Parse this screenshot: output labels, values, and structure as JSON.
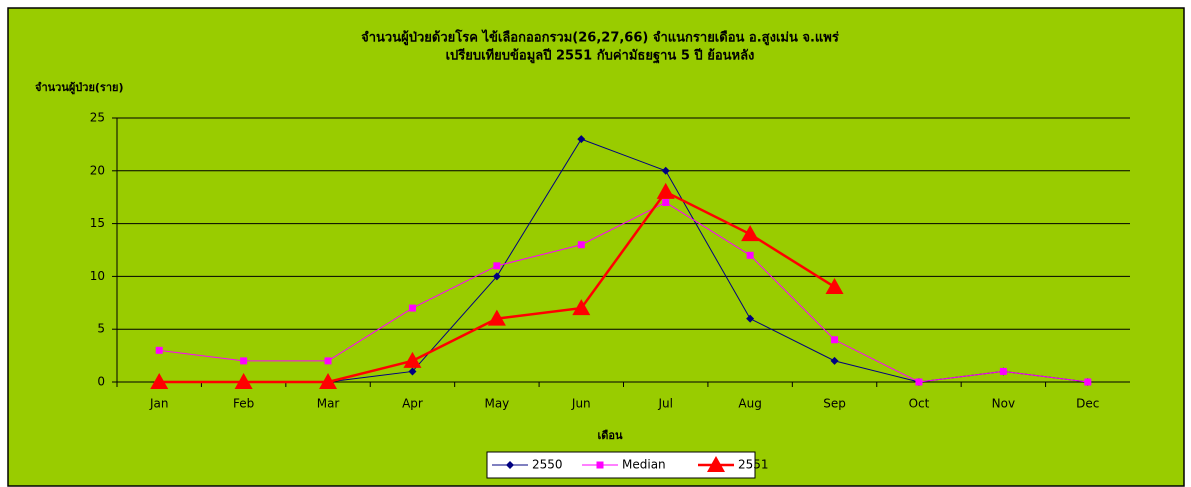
{
  "chart_data": {
    "type": "line",
    "title": "จำนวนผู้ป่วยด้วยโรค  ไข้เลือกออกรวม(26,27,66)  จำแนกรายเดือน    อ.สูงเม่น จ.แพร่",
    "subtitle": "เปรียบเทียบข้อมูลปี  2551  กับค่ามัธยฐาน 5 ปี ย้อนหลัง",
    "y_label": "จำนวนผู้ป่วย(ราย)",
    "x_label": "เดือน",
    "categories": [
      "Jan",
      "Feb",
      "Mar",
      "Apr",
      "May",
      "Jun",
      "Jul",
      "Aug",
      "Sep",
      "Oct",
      "Nov",
      "Dec"
    ],
    "series": [
      {
        "name": "2550",
        "color": "#000080",
        "marker": "diamond",
        "values": [
          0,
          0,
          0,
          1,
          10,
          23,
          20,
          6,
          2,
          0,
          1,
          0
        ]
      },
      {
        "name": "Median",
        "color": "#ff00ff",
        "marker": "square",
        "values": [
          3,
          2,
          2,
          7,
          11,
          13,
          17,
          12,
          4,
          0,
          1,
          0
        ]
      },
      {
        "name": "2551",
        "color": "#ff0000",
        "marker": "triangle",
        "values": [
          0,
          0,
          0,
          2,
          6,
          7,
          18,
          14,
          9,
          null,
          null,
          null
        ]
      }
    ],
    "ylim": [
      0,
      25
    ],
    "yticks": [
      0,
      5,
      10,
      15,
      20,
      25
    ],
    "grid": true,
    "legend": "bottom"
  }
}
